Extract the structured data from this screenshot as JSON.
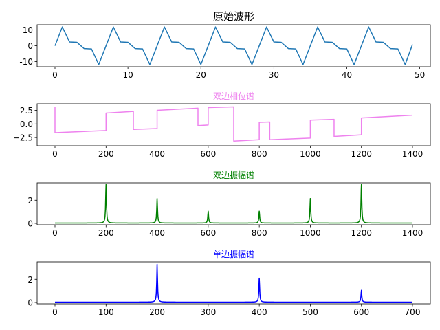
{
  "colors": {
    "wave": "#1f77b4",
    "phase": "#ee82ee",
    "amp2": "#008000",
    "amp1": "#0000ff"
  },
  "chart_data": [
    {
      "type": "line",
      "title": "原始波形",
      "title_color": "#000000",
      "color": "#1f77b4",
      "xlim": [
        -2.45,
        51.45
      ],
      "ylim": [
        -13.3,
        13.3
      ],
      "xticks": [
        0,
        10,
        20,
        30,
        40,
        50
      ],
      "yticks": [
        -10,
        0,
        10
      ],
      "x": [
        0,
        1,
        2,
        3,
        4,
        5,
        6,
        7,
        8,
        9,
        10,
        11,
        12,
        13,
        14,
        15,
        16,
        17,
        18,
        19,
        20,
        21,
        22,
        23,
        24,
        25,
        26,
        27,
        28,
        29,
        30,
        31,
        32,
        33,
        34,
        35,
        36,
        37,
        38,
        39,
        40,
        41,
        42,
        43,
        44,
        45,
        46,
        47,
        48,
        49
      ],
      "y": [
        0,
        11.9,
        2.4,
        2.2,
        -1.8,
        -2.0,
        -11.9,
        0,
        11.9,
        2.4,
        2.2,
        -1.8,
        -2.0,
        -11.9,
        0,
        11.9,
        2.4,
        2.2,
        -1.8,
        -2.0,
        -11.9,
        0,
        11.9,
        2.4,
        2.2,
        -1.8,
        -2.0,
        -11.9,
        0,
        11.9,
        2.4,
        2.2,
        -1.8,
        -2.0,
        -11.9,
        0,
        11.9,
        2.4,
        2.2,
        -1.8,
        -2.0,
        -11.9,
        0,
        11.9,
        2.4,
        2.2,
        -1.8,
        -2.0,
        -11.9,
        0.8
      ]
    },
    {
      "type": "line",
      "title": "双边相位谱",
      "title_color": "#ee82ee",
      "color": "#ee82ee",
      "xlim": [
        -70,
        1470
      ],
      "ylim": [
        -4.0,
        3.7
      ],
      "xticks": [
        0,
        200,
        400,
        600,
        800,
        1000,
        1200,
        1400
      ],
      "yticks": [
        -2.5,
        0.0,
        2.5
      ],
      "ytick_labels": [
        "−2.5",
        "0.0",
        "2.5"
      ],
      "x": [
        0,
        0,
        200,
        200,
        307,
        307,
        400,
        400,
        560,
        560,
        600,
        600,
        700,
        700,
        800,
        800,
        841,
        841,
        1000,
        1000,
        1093,
        1093,
        1200,
        1200,
        1400
      ],
      "y": [
        3.14,
        -1.6,
        -1.2,
        2.0,
        2.3,
        -1.0,
        -0.85,
        2.5,
        2.9,
        -0.3,
        -0.2,
        3.0,
        3.14,
        -3.14,
        -2.9,
        0.3,
        0.35,
        -2.9,
        -2.6,
        0.7,
        0.85,
        -2.3,
        -2.0,
        1.1,
        1.6
      ]
    },
    {
      "type": "line",
      "title": "双边振幅谱",
      "title_color": "#008000",
      "color": "#008000",
      "xlim": [
        -70,
        1470
      ],
      "ylim": [
        -0.12,
        3.5
      ],
      "xticks": [
        0,
        200,
        400,
        600,
        800,
        1000,
        1200,
        1400
      ],
      "yticks": [
        0,
        2
      ],
      "baseline": 0.03,
      "peaks": [
        {
          "x": 200,
          "y": 3.35
        },
        {
          "x": 400,
          "y": 2.15
        },
        {
          "x": 600,
          "y": 1.05
        },
        {
          "x": 800,
          "y": 1.05
        },
        {
          "x": 1000,
          "y": 2.15
        },
        {
          "x": 1200,
          "y": 3.35
        }
      ]
    },
    {
      "type": "line",
      "title": "单边振幅谱",
      "title_color": "#0000ff",
      "color": "#0000ff",
      "xlim": [
        -35,
        735
      ],
      "ylim": [
        -0.12,
        3.5
      ],
      "xticks": [
        0,
        100,
        200,
        300,
        400,
        500,
        600,
        700
      ],
      "yticks": [
        0,
        2
      ],
      "baseline": 0.03,
      "peaks": [
        {
          "x": 200,
          "y": 3.3
        },
        {
          "x": 400,
          "y": 2.1
        },
        {
          "x": 600,
          "y": 1.05
        }
      ]
    }
  ]
}
